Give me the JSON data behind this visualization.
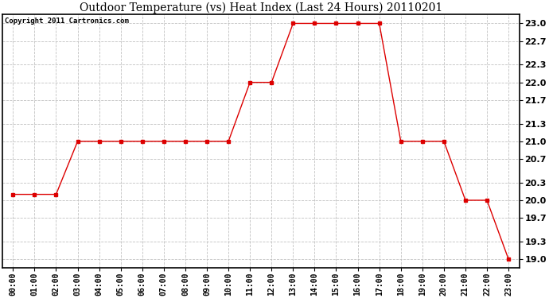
{
  "title": "Outdoor Temperature (vs) Heat Index (Last 24 Hours) 20110201",
  "copyright": "Copyright 2011 Cartronics.com",
  "x_labels": [
    "00:00",
    "01:00",
    "02:00",
    "03:00",
    "04:00",
    "05:00",
    "06:00",
    "07:00",
    "08:00",
    "09:00",
    "10:00",
    "11:00",
    "12:00",
    "13:00",
    "14:00",
    "15:00",
    "16:00",
    "17:00",
    "18:00",
    "19:00",
    "20:00",
    "21:00",
    "22:00",
    "23:00"
  ],
  "y_values": [
    20.1,
    20.1,
    20.1,
    21.0,
    21.0,
    21.0,
    21.0,
    21.0,
    21.0,
    21.0,
    21.0,
    22.0,
    22.0,
    23.0,
    23.0,
    23.0,
    23.0,
    23.0,
    21.0,
    21.0,
    21.0,
    20.0,
    20.0,
    19.0
  ],
  "ylim_min": 18.85,
  "ylim_max": 23.15,
  "yticks": [
    19.0,
    19.3,
    19.7,
    20.0,
    20.3,
    20.7,
    21.0,
    21.3,
    21.7,
    22.0,
    22.3,
    22.7,
    23.0
  ],
  "line_color": "#dd0000",
  "marker": "s",
  "marker_size": 3,
  "bg_color": "#ffffff",
  "grid_color": "#bbbbbb",
  "title_fontsize": 10,
  "copyright_fontsize": 6.5,
  "tick_fontsize": 7,
  "ytick_fontsize": 8
}
